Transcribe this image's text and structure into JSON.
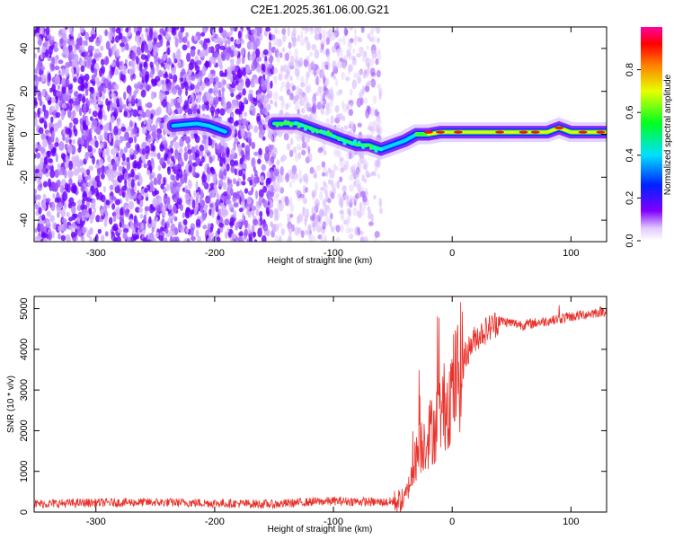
{
  "title": "C2E1.2025.361.06.00.G21",
  "chart_data": [
    {
      "type": "heatmap",
      "xlabel": "Height of straight line (km)",
      "ylabel": "Frequency (Hz)",
      "xlim": [
        -352,
        130
      ],
      "ylim": [
        -50,
        50
      ],
      "xticks": [
        -300,
        -200,
        -100,
        0,
        100
      ],
      "yticks": [
        -40,
        -20,
        0,
        20,
        40
      ],
      "colorbar": {
        "label": "Normalized spectral amplitude",
        "range": [
          0,
          1
        ],
        "ticks": [
          "0.0",
          "0.2",
          "0.4",
          "0.6",
          "0.8"
        ],
        "tick_values": [
          0,
          0.2,
          0.4,
          0.6,
          0.8
        ]
      },
      "ridge": {
        "x": [
          -235,
          -215,
          -205,
          -190,
          -150,
          -140,
          -130,
          -120,
          -110,
          -100,
          -90,
          -80,
          -70,
          -60,
          -50,
          -40,
          -30,
          -20,
          -10,
          0,
          10,
          20,
          40,
          60,
          80,
          90,
          100,
          130
        ],
        "y": [
          4,
          5,
          4,
          1,
          5,
          5,
          5,
          3,
          1,
          -1,
          -3,
          -5,
          -5,
          -7,
          -5,
          -3,
          0,
          0,
          1,
          1,
          1,
          1,
          1,
          1,
          1,
          3,
          1,
          1
        ]
      },
      "noise_regions": [
        {
          "x": [
            -352,
            -150
          ],
          "level": "dense"
        },
        {
          "x": [
            -150,
            -60
          ],
          "level": "sparse"
        }
      ]
    },
    {
      "type": "line",
      "xlabel": "Height of straight line (km)",
      "ylabel": "SNR (10 * v/v)",
      "xlim": [
        -352,
        130
      ],
      "ylim": [
        0,
        5300
      ],
      "xticks": [
        -300,
        -200,
        -100,
        0,
        100
      ],
      "yticks": [
        0,
        1000,
        2000,
        3000,
        4000,
        5000
      ],
      "series": [
        {
          "color": "#e8312a",
          "x": [
            -352,
            -300,
            -250,
            -200,
            -150,
            -120,
            -100,
            -80,
            -60,
            -50,
            -40,
            -35,
            -30,
            -25,
            -20,
            -15,
            -10,
            -5,
            0,
            10,
            20,
            30,
            40,
            50,
            60,
            80,
            90,
            100,
            110,
            120,
            130
          ],
          "y": [
            200,
            230,
            240,
            220,
            190,
            250,
            270,
            260,
            240,
            250,
            300,
            800,
            1400,
            1700,
            1900,
            2100,
            2400,
            2700,
            3000,
            3800,
            4300,
            4500,
            4700,
            4650,
            4600,
            4700,
            4750,
            4800,
            4850,
            4900,
            4950
          ]
        }
      ]
    }
  ]
}
